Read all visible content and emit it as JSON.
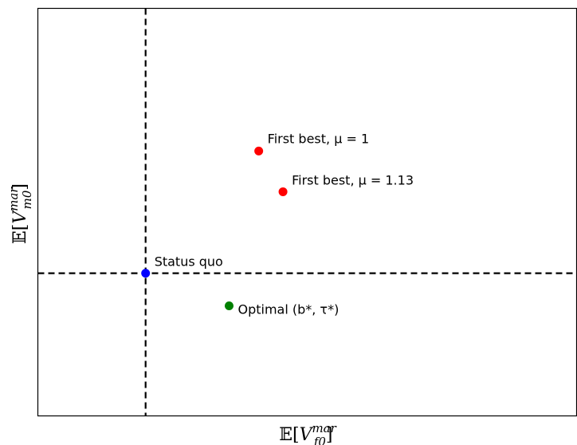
{
  "chart_data": {
    "type": "scatter",
    "title": "",
    "xlabel": {
      "prefix": "𝔼[",
      "base": "V",
      "sup": "mar",
      "sub": "f0",
      "suffix": "]"
    },
    "ylabel": {
      "prefix": "𝔼[",
      "base": "V",
      "sup": "mar",
      "sub": "m0",
      "suffix": "]"
    },
    "xlim": [
      0,
      100
    ],
    "ylim": [
      0,
      100
    ],
    "grid": false,
    "reference_lines": {
      "x": 20,
      "y": 35
    },
    "points": [
      {
        "name": "status-quo",
        "label": "Status quo",
        "x": 20,
        "y": 35,
        "color": "#0000ff"
      },
      {
        "name": "optimal",
        "label": "Optimal (b*, τ*)",
        "x": 35.5,
        "y": 27,
        "color": "#008000"
      },
      {
        "name": "first-best-mu-1",
        "label": "First best, μ = 1",
        "x": 41,
        "y": 65,
        "color": "#ff0000"
      },
      {
        "name": "first-best-mu-113",
        "label": "First best, μ = 1.13",
        "x": 45.5,
        "y": 55,
        "color": "#ff0000"
      }
    ]
  }
}
